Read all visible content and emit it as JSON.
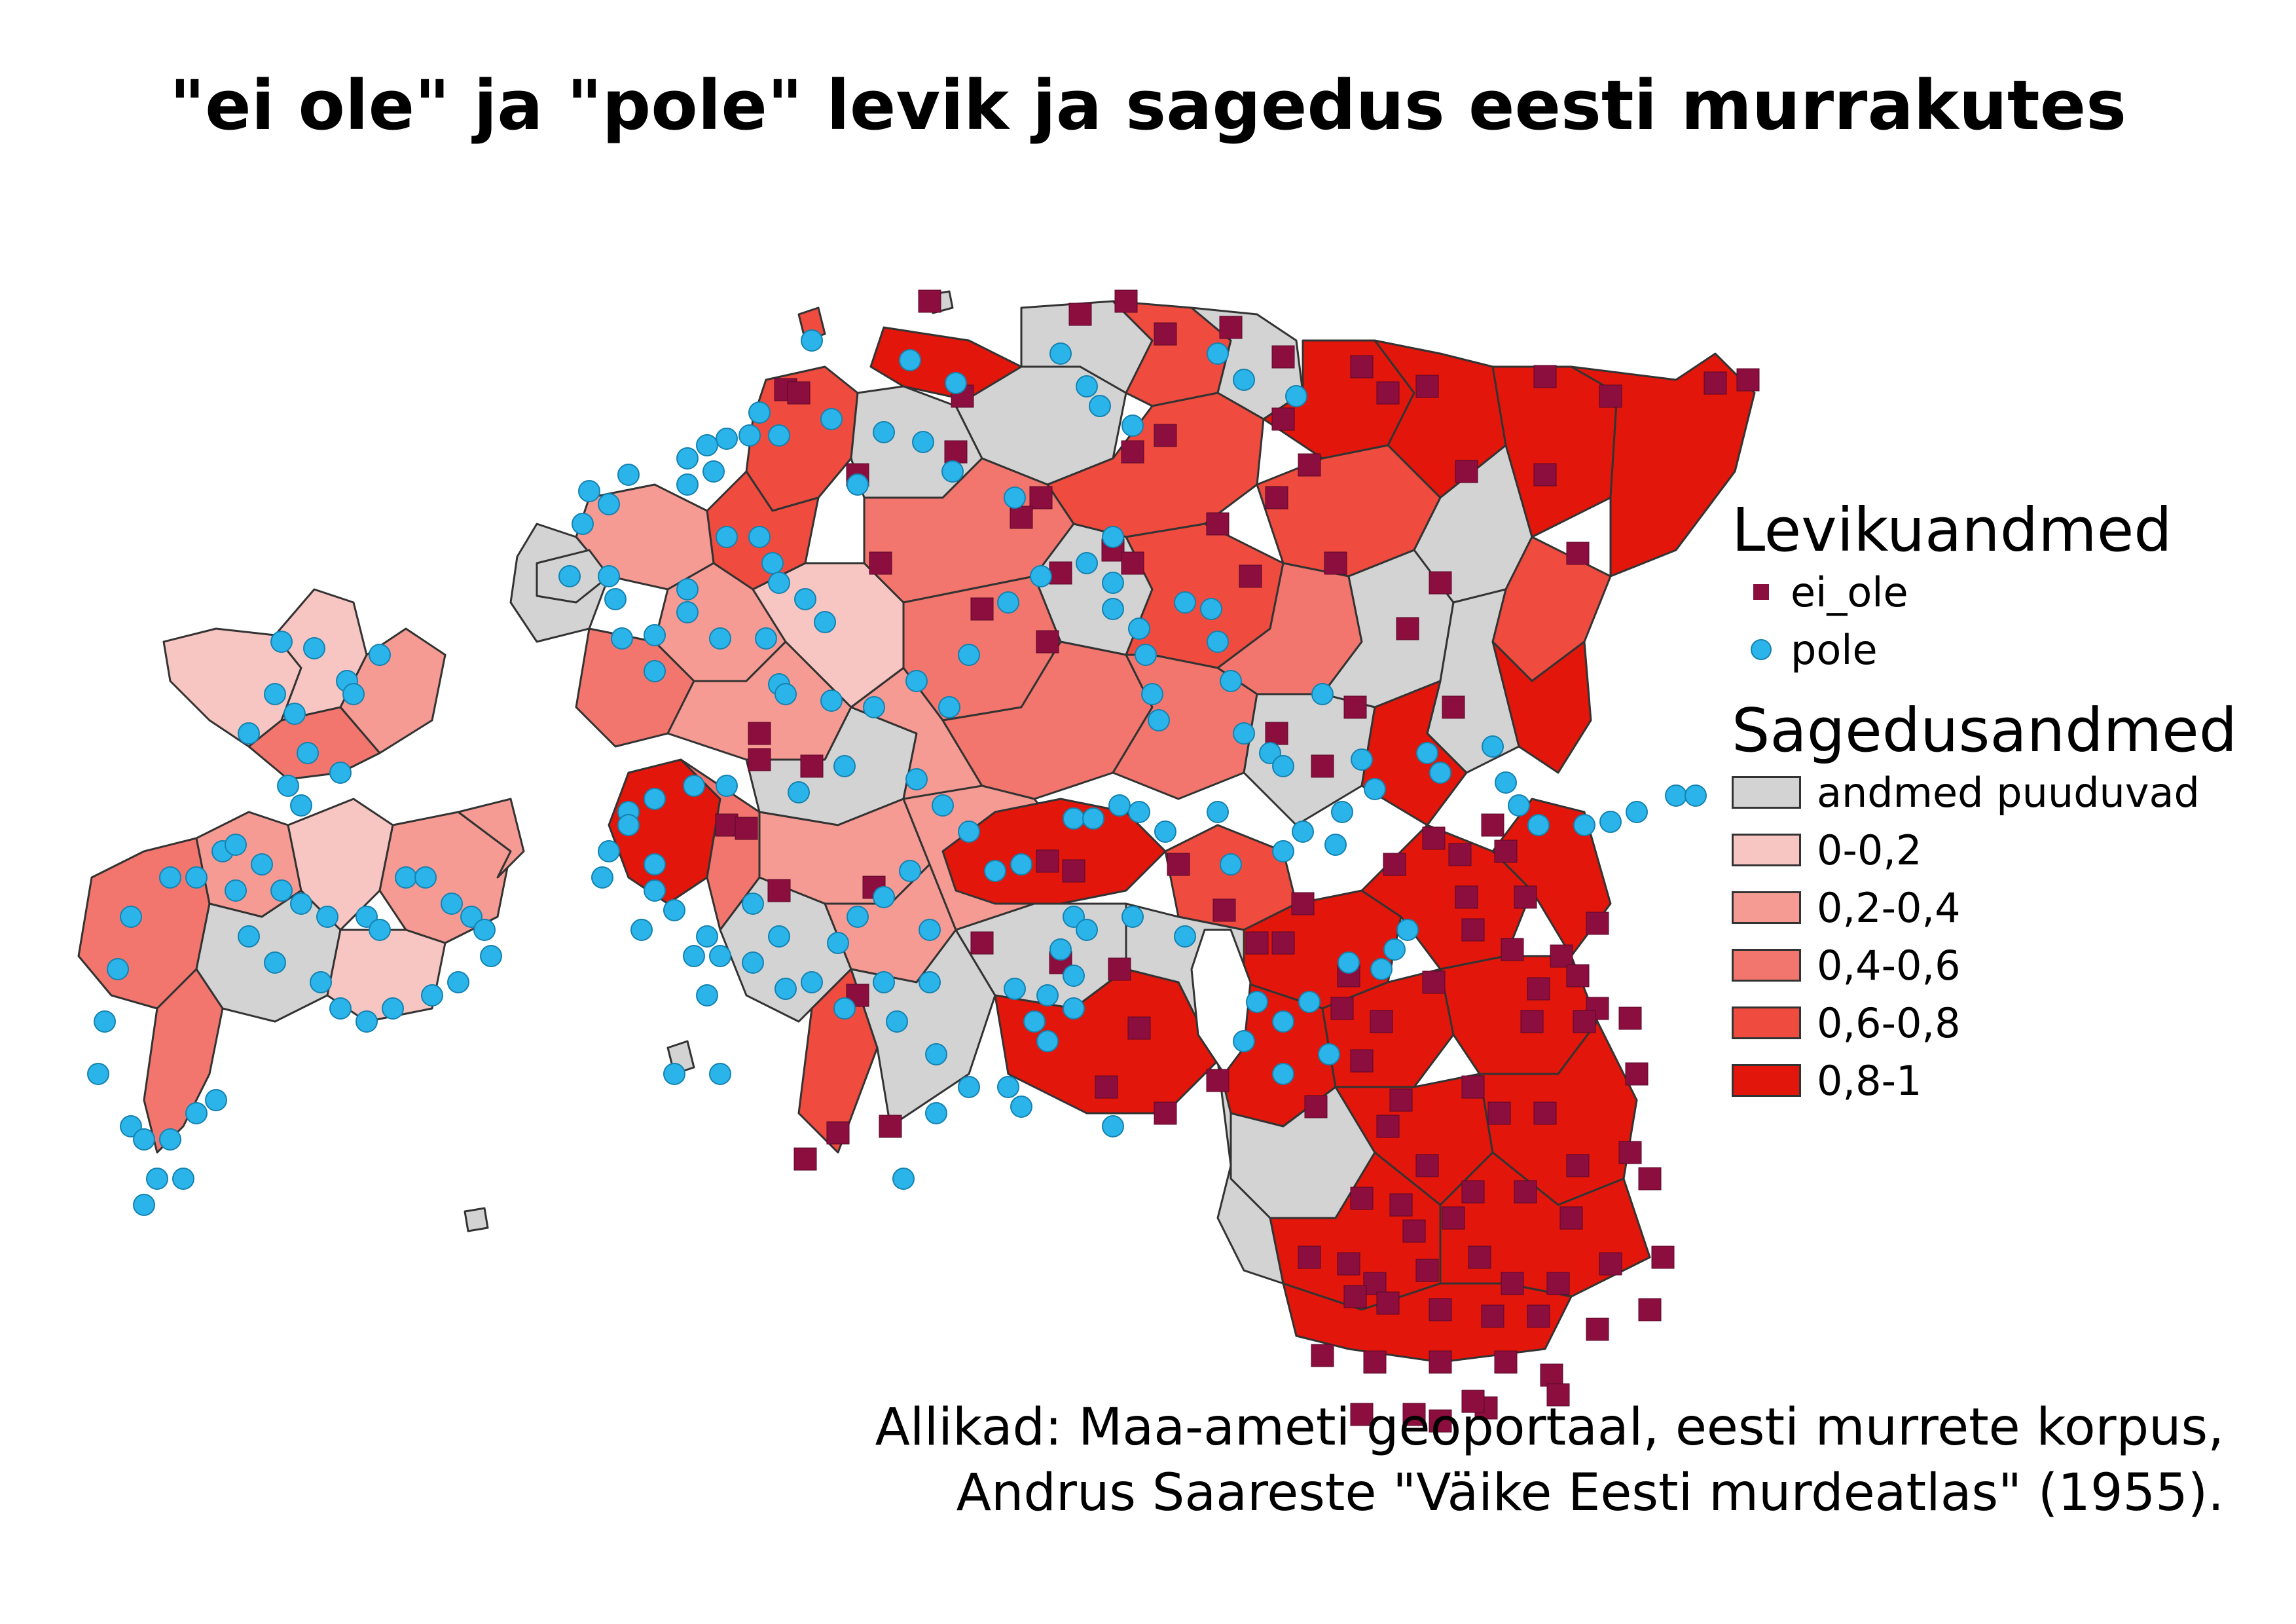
{
  "title": "\"ei ole\" ja \"pole\" levik ja sagedus eesti murrakutes",
  "legend": {
    "distribution_heading": "Levikuandmed",
    "distribution_items": [
      {
        "label": "ei_ole",
        "symbol": "square",
        "color": "#8b0e3e"
      },
      {
        "label": "pole",
        "symbol": "circle",
        "color": "#2ab4ea"
      }
    ],
    "frequency_heading": "Sagedusandmed",
    "frequency_items": [
      {
        "label": "andmed puuduvad",
        "color": "#d3d3d3"
      },
      {
        "label": "0-0,2",
        "color": "#f7c6c2"
      },
      {
        "label": "0,2-0,4",
        "color": "#f59b93"
      },
      {
        "label": "0,4-0,6",
        "color": "#f2766d"
      },
      {
        "label": "0,6-0,8",
        "color": "#ef4b3f"
      },
      {
        "label": "0,8-1",
        "color": "#e3160b"
      }
    ]
  },
  "sources": {
    "line1": "Allikad: Maa-ameti geoportaal, eesti murrete korpus,",
    "line2": "Andrus Saareste \"Väike Eesti murdeatlas\" (1955)."
  }
}
